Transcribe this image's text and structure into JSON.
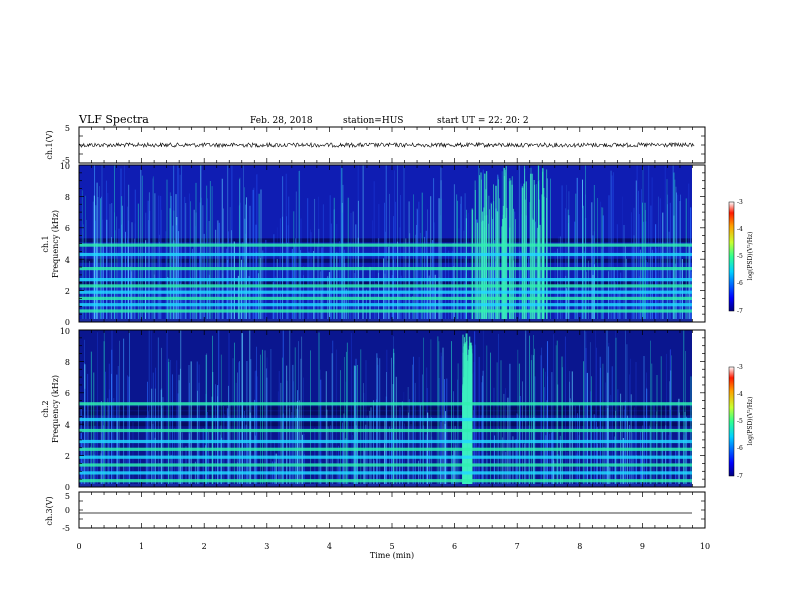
{
  "header": {
    "title": "VLF Spectra",
    "date": "Feb. 28, 2018",
    "station": "station=HUS",
    "start": "start  UT =   22: 20: 2"
  },
  "chart_data": [
    {
      "type": "line",
      "panel": "ch1-waveform",
      "ylabel": "ch.1(V)",
      "ylim": [
        -5,
        5
      ],
      "yticks": [
        "5",
        "-5"
      ],
      "x_range": [
        0,
        9.83
      ],
      "series": [
        {
          "mean": 0.0,
          "amplitude": 0.6
        }
      ]
    },
    {
      "type": "heatmap",
      "panel": "ch1-spectrogram",
      "ylabel_top": "ch.1",
      "ylabel": "Frequency (kHz)",
      "ylim": [
        0,
        10
      ],
      "yticks": [
        "0",
        "2",
        "4",
        "6",
        "8",
        "10"
      ],
      "x_range": [
        0,
        9.83
      ],
      "bands_khz": [
        0.7,
        1.1,
        1.5,
        1.9,
        2.3,
        2.7,
        3.4,
        4.3,
        4.9
      ],
      "dark_bands_khz": [
        5.2,
        2.45,
        3.9
      ],
      "burst_minutes": [
        6.3,
        7.5
      ]
    },
    {
      "type": "heatmap",
      "panel": "ch2-spectrogram",
      "ylabel_top": "ch.2",
      "ylabel": "Frequency (kHz)",
      "ylim": [
        0,
        10
      ],
      "yticks": [
        "0",
        "2",
        "4",
        "6",
        "8",
        "10"
      ],
      "x_range": [
        0,
        9.83
      ],
      "bands_khz": [
        0.4,
        0.9,
        1.4,
        1.9,
        2.4,
        2.9,
        3.6,
        4.3,
        5.3
      ],
      "dark_bands_khz": [
        4.7,
        4.0,
        5.0
      ],
      "burst_minutes": [
        6.15,
        6.3
      ]
    },
    {
      "type": "line",
      "panel": "ch3-waveform",
      "ylabel": "ch.3(V)",
      "ylim": [
        -5,
        5
      ],
      "yticks": [
        "5",
        "0",
        "-5"
      ],
      "x_range": [
        0,
        9.83
      ],
      "series": [
        {
          "mean": -2.0,
          "amplitude": 0
        }
      ]
    }
  ],
  "x_axis": {
    "label": "Time  (min)",
    "ticks": [
      "0",
      "1",
      "2",
      "3",
      "4",
      "5",
      "6",
      "7",
      "8",
      "9",
      "10"
    ],
    "range": [
      0,
      10
    ]
  },
  "colorbar": {
    "label": "log(PSD)(V²/Hz)",
    "ticks": [
      "-3",
      "-4",
      "-5",
      "-6",
      "-7"
    ],
    "range": [
      -7,
      -3
    ]
  }
}
